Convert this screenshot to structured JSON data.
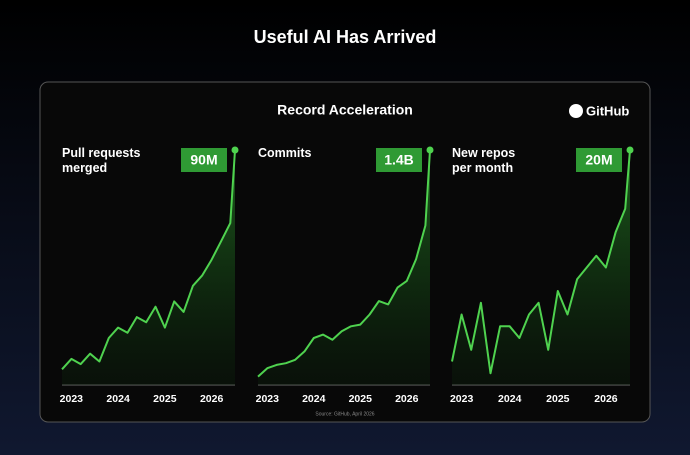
{
  "title": "Useful AI Has Arrived",
  "subtitle": "Record Acceleration",
  "brand": "GitHub",
  "source": "Source: GitHub, April 2026",
  "chart_data": [
    {
      "type": "line",
      "title": "Pull requests merged",
      "color": "#4fd24f",
      "x": [
        2022.8,
        2023.0,
        2023.2,
        2023.4,
        2023.6,
        2023.8,
        2024.0,
        2024.2,
        2024.4,
        2024.6,
        2024.8,
        2025.0,
        2025.2,
        2025.4,
        2025.6,
        2025.8,
        2026.0,
        2026.2,
        2026.4,
        2026.5
      ],
      "values": [
        6,
        10,
        8,
        12,
        9,
        18,
        22,
        20,
        26,
        24,
        30,
        22,
        32,
        28,
        38,
        42,
        48,
        55,
        62,
        90
      ],
      "value_labels": [
        null,
        null,
        null,
        null,
        null,
        null,
        null,
        null,
        null,
        null,
        null,
        null,
        null,
        null,
        null,
        null,
        null,
        null,
        null,
        "90M"
      ],
      "xlim": [
        2022.8,
        2026.5
      ],
      "xticks": [
        2023,
        2024,
        2025,
        2026
      ],
      "ylim": [
        0,
        90
      ]
    },
    {
      "type": "line",
      "title": "Commits",
      "color": "#4fd24f",
      "x": [
        2022.8,
        2023.0,
        2023.2,
        2023.4,
        2023.6,
        2023.8,
        2024.0,
        2024.2,
        2024.4,
        2024.6,
        2024.8,
        2025.0,
        2025.2,
        2025.4,
        2025.6,
        2025.8,
        2026.0,
        2026.2,
        2026.4,
        2026.5
      ],
      "values": [
        0.05,
        0.1,
        0.12,
        0.13,
        0.15,
        0.2,
        0.28,
        0.3,
        0.27,
        0.32,
        0.35,
        0.36,
        0.42,
        0.5,
        0.48,
        0.58,
        0.62,
        0.75,
        0.95,
        1.4
      ],
      "value_labels": [
        null,
        null,
        null,
        null,
        null,
        null,
        null,
        null,
        null,
        null,
        null,
        null,
        null,
        null,
        null,
        null,
        null,
        null,
        null,
        "1.4B"
      ],
      "xlim": [
        2022.8,
        2026.5
      ],
      "xticks": [
        2023,
        2024,
        2025,
        2026
      ],
      "ylim": [
        0,
        1.4
      ]
    },
    {
      "type": "line",
      "title": "New repos per month",
      "color": "#4fd24f",
      "x": [
        2022.8,
        2023.0,
        2023.2,
        2023.4,
        2023.6,
        2023.8,
        2024.0,
        2024.2,
        2024.4,
        2024.6,
        2024.8,
        2025.0,
        2025.2,
        2025.4,
        2025.6,
        2025.8,
        2026.0,
        2026.2,
        2026.4,
        2026.5
      ],
      "values": [
        2,
        6,
        3,
        7,
        1,
        5,
        5,
        4,
        6,
        7,
        3,
        8,
        6,
        9,
        10,
        11,
        10,
        13,
        15,
        20
      ],
      "value_labels": [
        null,
        null,
        null,
        null,
        null,
        null,
        null,
        null,
        null,
        null,
        null,
        null,
        null,
        null,
        null,
        null,
        null,
        null,
        null,
        "20M"
      ],
      "xlim": [
        2022.8,
        2026.5
      ],
      "xticks": [
        2023,
        2024,
        2025,
        2026
      ],
      "ylim": [
        0,
        20
      ]
    }
  ]
}
